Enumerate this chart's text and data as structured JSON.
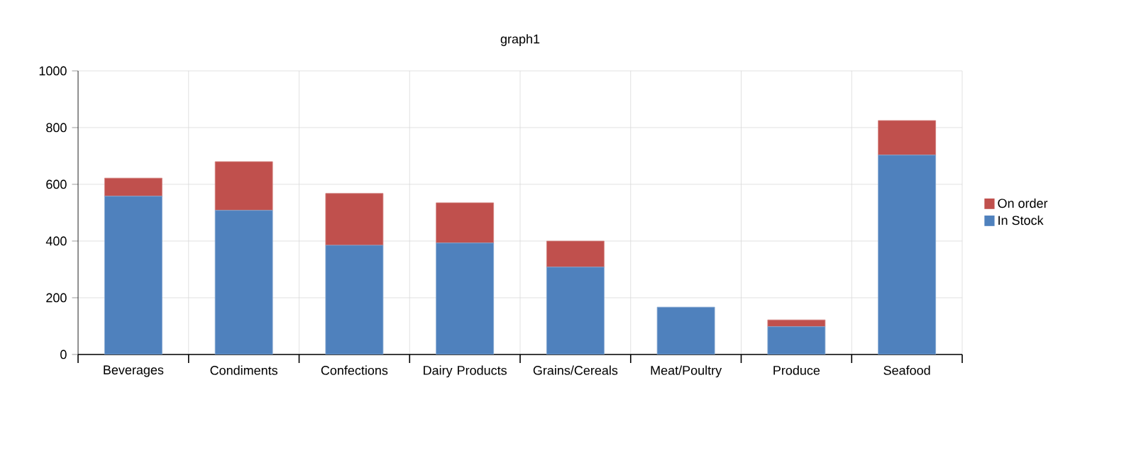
{
  "chart_data": {
    "type": "bar",
    "title": "graph1",
    "stacked": true,
    "categories": [
      "Beverages",
      "Condiments",
      "Confections",
      "Dairy Products",
      "Grains/Cereals",
      "Meat/Poultry",
      "Produce",
      "Seafood"
    ],
    "series": [
      {
        "name": "In Stock",
        "color": "#4f81bd",
        "values": [
          558,
          508,
          385,
          393,
          308,
          167,
          98,
          703
        ]
      },
      {
        "name": "On order",
        "color": "#c0504d",
        "values": [
          64,
          172,
          183,
          142,
          92,
          0,
          24,
          122
        ]
      }
    ],
    "ylim": [
      0,
      1000
    ],
    "yticks": [
      0,
      200,
      400,
      600,
      800,
      1000
    ],
    "grid": true,
    "legend": "right"
  }
}
